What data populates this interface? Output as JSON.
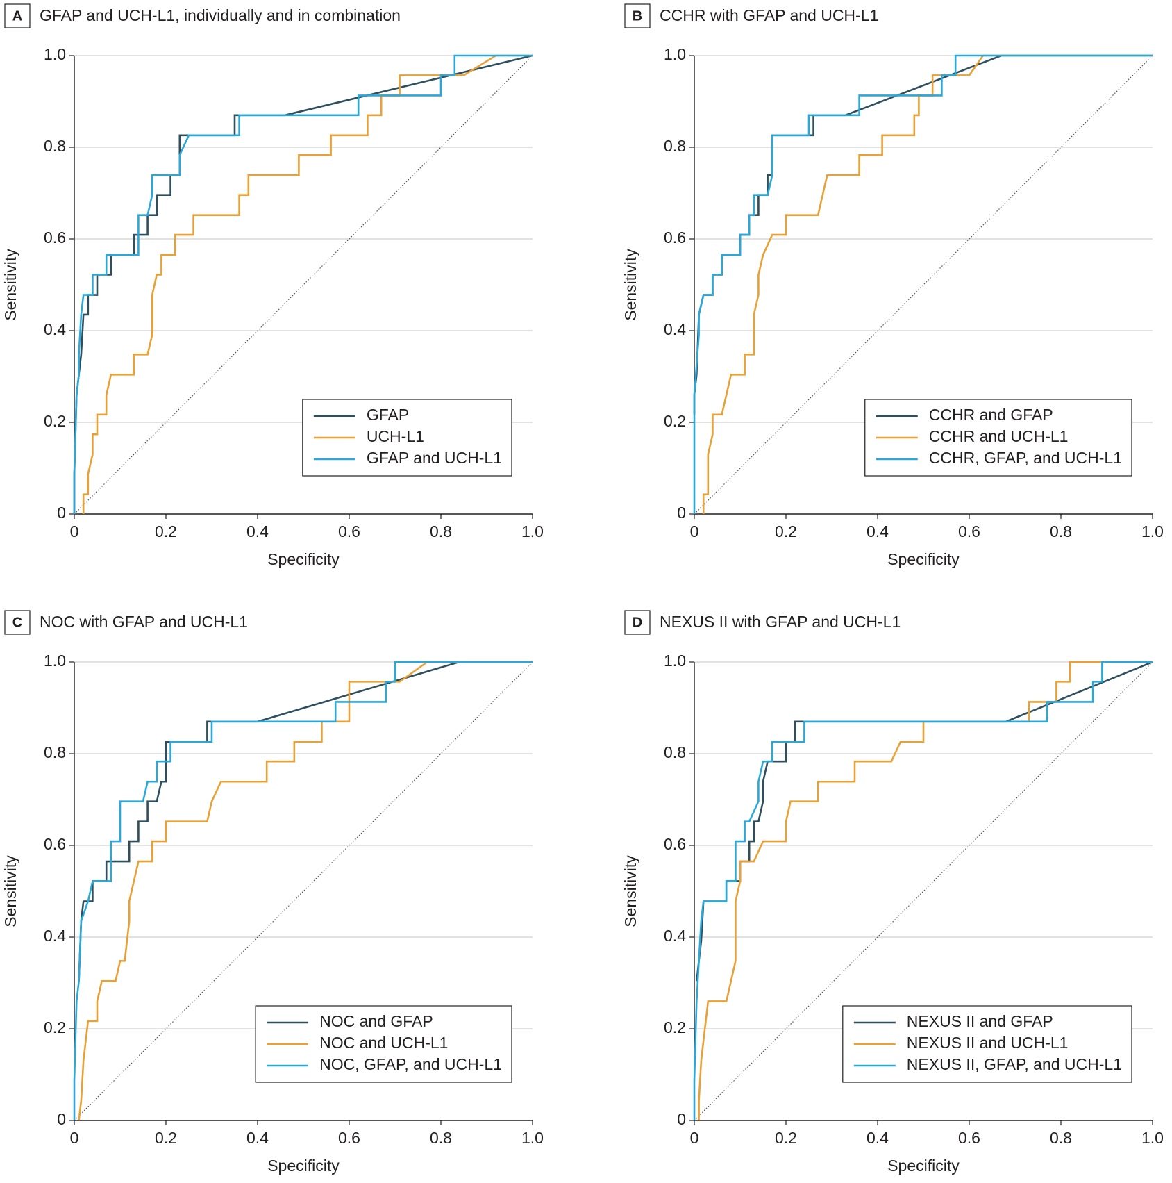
{
  "chart_data": [
    {
      "type": "line",
      "panel": "A",
      "title": "GFAP and UCH-L1, individually and in combination",
      "xlabel": "Specificity",
      "ylabel": "Sensitivity",
      "xlim": [
        0,
        1
      ],
      "ylim": [
        0,
        1
      ],
      "xticks": [
        0,
        0.2,
        0.4,
        0.6,
        0.8,
        {
          "value": 1,
          "label": "1.0"
        }
      ],
      "yticks": [
        0,
        0.2,
        0.4,
        0.6,
        0.8,
        {
          "value": 1,
          "label": "1.0"
        }
      ],
      "grid": true,
      "legend": "lower right",
      "series": [
        {
          "name": "GFAP",
          "color": "#2e4f5e",
          "x": [
            0,
            0,
            0.005,
            0.01,
            0.015,
            0.02,
            0.03,
            0.03,
            0.05,
            0.05,
            0.08,
            0.08,
            0.13,
            0.13,
            0.16,
            0.16,
            0.18,
            0.18,
            0.21,
            0.21,
            0.23,
            0.23,
            0.35,
            0.35,
            0.46,
            1
          ],
          "values": [
            0,
            0.087,
            0.26,
            0.304,
            0.348,
            0.435,
            0.435,
            0.478,
            0.478,
            0.522,
            0.522,
            0.565,
            0.565,
            0.609,
            0.609,
            0.652,
            0.652,
            0.696,
            0.696,
            0.739,
            0.739,
            0.826,
            0.826,
            0.87,
            0.87,
            1
          ]
        },
        {
          "name": "UCH-L1",
          "color": "#e9a035",
          "x": [
            0.02,
            0.02,
            0.03,
            0.03,
            0.04,
            0.04,
            0.05,
            0.05,
            0.07,
            0.07,
            0.08,
            0.13,
            0.13,
            0.16,
            0.17,
            0.17,
            0.18,
            0.19,
            0.19,
            0.22,
            0.22,
            0.26,
            0.26,
            0.36,
            0.36,
            0.38,
            0.38,
            0.49,
            0.49,
            0.56,
            0.56,
            0.64,
            0.64,
            0.67,
            0.67,
            0.71,
            0.71,
            0.85,
            0.92,
            1
          ],
          "values": [
            0,
            0.043,
            0.043,
            0.087,
            0.13,
            0.174,
            0.174,
            0.217,
            0.217,
            0.26,
            0.304,
            0.304,
            0.348,
            0.348,
            0.391,
            0.478,
            0.522,
            0.522,
            0.565,
            0.565,
            0.609,
            0.609,
            0.652,
            0.652,
            0.696,
            0.696,
            0.739,
            0.739,
            0.783,
            0.783,
            0.826,
            0.826,
            0.87,
            0.87,
            0.913,
            0.913,
            0.957,
            0.957,
            1,
            1
          ]
        },
        {
          "name": "GFAP and UCH-L1",
          "color": "#2aa8d9",
          "x": [
            0,
            0,
            0.005,
            0.01,
            0.01,
            0.015,
            0.02,
            0.04,
            0.04,
            0.07,
            0.07,
            0.14,
            0.14,
            0.16,
            0.17,
            0.17,
            0.23,
            0.23,
            0.25,
            0.36,
            0.36,
            0.62,
            0.62,
            0.8,
            0.8,
            0.83,
            0.83,
            1
          ],
          "values": [
            0,
            0.087,
            0.26,
            0.304,
            0.348,
            0.435,
            0.478,
            0.478,
            0.522,
            0.522,
            0.565,
            0.565,
            0.652,
            0.652,
            0.696,
            0.739,
            0.739,
            0.783,
            0.826,
            0.826,
            0.87,
            0.87,
            0.913,
            0.913,
            0.957,
            0.957,
            1,
            1
          ]
        }
      ]
    },
    {
      "type": "line",
      "panel": "B",
      "title": "CCHR with GFAP and UCH-L1",
      "xlabel": "Specificity",
      "ylabel": "Sensitivity",
      "xlim": [
        0,
        1
      ],
      "ylim": [
        0,
        1
      ],
      "xticks": [
        0,
        0.2,
        0.4,
        0.6,
        0.8,
        {
          "value": 1,
          "label": "1.0"
        }
      ],
      "yticks": [
        0,
        0.2,
        0.4,
        0.6,
        0.8,
        {
          "value": 1,
          "label": "1.0"
        }
      ],
      "grid": true,
      "legend": "lower right",
      "series": [
        {
          "name": "CCHR and GFAP",
          "color": "#2e4f5e",
          "x": [
            0,
            0,
            0.005,
            0.01,
            0.02,
            0.04,
            0.04,
            0.06,
            0.06,
            0.1,
            0.1,
            0.12,
            0.12,
            0.14,
            0.14,
            0.16,
            0.16,
            0.17,
            0.17,
            0.26,
            0.26,
            0.33,
            0.67,
            1
          ],
          "values": [
            0.217,
            0.26,
            0.304,
            0.435,
            0.478,
            0.478,
            0.522,
            0.522,
            0.565,
            0.565,
            0.609,
            0.609,
            0.652,
            0.652,
            0.696,
            0.696,
            0.739,
            0.739,
            0.826,
            0.826,
            0.87,
            0.87,
            1,
            1
          ]
        },
        {
          "name": "CCHR and UCH-L1",
          "color": "#e9a035",
          "x": [
            0.02,
            0.02,
            0.03,
            0.03,
            0.04,
            0.04,
            0.06,
            0.07,
            0.08,
            0.11,
            0.11,
            0.13,
            0.13,
            0.14,
            0.14,
            0.15,
            0.17,
            0.2,
            0.2,
            0.27,
            0.28,
            0.29,
            0.36,
            0.36,
            0.41,
            0.41,
            0.48,
            0.48,
            0.49,
            0.49,
            0.52,
            0.52,
            0.6,
            0.63,
            1
          ],
          "values": [
            0,
            0.043,
            0.043,
            0.13,
            0.174,
            0.217,
            0.217,
            0.26,
            0.304,
            0.304,
            0.348,
            0.348,
            0.435,
            0.478,
            0.522,
            0.565,
            0.609,
            0.609,
            0.652,
            0.652,
            0.696,
            0.739,
            0.739,
            0.783,
            0.783,
            0.826,
            0.826,
            0.87,
            0.87,
            0.913,
            0.913,
            0.957,
            0.957,
            1,
            1
          ]
        },
        {
          "name": "CCHR, GFAP, and UCH-L1",
          "color": "#2aa8d9",
          "x": [
            0,
            0,
            0.01,
            0.01,
            0.02,
            0.04,
            0.04,
            0.06,
            0.06,
            0.1,
            0.1,
            0.12,
            0.12,
            0.13,
            0.13,
            0.16,
            0.17,
            0.17,
            0.25,
            0.25,
            0.36,
            0.36,
            0.54,
            0.54,
            0.57,
            0.57,
            1
          ],
          "values": [
            0,
            0.26,
            0.391,
            0.435,
            0.478,
            0.478,
            0.522,
            0.522,
            0.565,
            0.565,
            0.609,
            0.609,
            0.652,
            0.652,
            0.696,
            0.696,
            0.739,
            0.826,
            0.826,
            0.87,
            0.87,
            0.913,
            0.913,
            0.957,
            0.957,
            1,
            1
          ]
        }
      ]
    },
    {
      "type": "line",
      "panel": "C",
      "title": "NOC with GFAP and UCH-L1",
      "xlabel": "Specificity",
      "ylabel": "Sensitivity",
      "xlim": [
        0,
        1
      ],
      "ylim": [
        0,
        1
      ],
      "xticks": [
        0,
        0.2,
        0.4,
        0.6,
        0.8,
        {
          "value": 1,
          "label": "1.0"
        }
      ],
      "yticks": [
        0,
        0.2,
        0.4,
        0.6,
        0.8,
        {
          "value": 1,
          "label": "1.0"
        }
      ],
      "grid": true,
      "legend": "lower right",
      "series": [
        {
          "name": "NOC and GFAP",
          "color": "#2e4f5e",
          "x": [
            0.01,
            0.015,
            0.02,
            0.04,
            0.04,
            0.07,
            0.07,
            0.12,
            0.12,
            0.14,
            0.14,
            0.16,
            0.16,
            0.18,
            0.19,
            0.2,
            0.2,
            0.29,
            0.29,
            0.4,
            0.84,
            1
          ],
          "values": [
            0.304,
            0.435,
            0.478,
            0.478,
            0.522,
            0.522,
            0.565,
            0.565,
            0.609,
            0.609,
            0.652,
            0.652,
            0.696,
            0.696,
            0.739,
            0.739,
            0.826,
            0.826,
            0.87,
            0.87,
            1,
            1
          ]
        },
        {
          "name": "NOC and UCH-L1",
          "color": "#e9a035",
          "x": [
            0.01,
            0.015,
            0.02,
            0.025,
            0.03,
            0.05,
            0.05,
            0.06,
            0.09,
            0.1,
            0.11,
            0.12,
            0.12,
            0.13,
            0.14,
            0.17,
            0.17,
            0.2,
            0.2,
            0.29,
            0.3,
            0.32,
            0.42,
            0.42,
            0.48,
            0.48,
            0.54,
            0.54,
            0.6,
            0.6,
            0.71,
            0.77,
            1
          ],
          "values": [
            0,
            0.043,
            0.13,
            0.174,
            0.217,
            0.217,
            0.26,
            0.304,
            0.304,
            0.348,
            0.348,
            0.435,
            0.478,
            0.522,
            0.565,
            0.565,
            0.609,
            0.609,
            0.652,
            0.652,
            0.696,
            0.739,
            0.739,
            0.783,
            0.783,
            0.826,
            0.826,
            0.87,
            0.87,
            0.957,
            0.957,
            1,
            1
          ]
        },
        {
          "name": "NOC, GFAP, and UCH-L1",
          "color": "#2aa8d9",
          "x": [
            0,
            0,
            0.005,
            0.01,
            0.015,
            0.03,
            0.04,
            0.08,
            0.08,
            0.1,
            0.1,
            0.15,
            0.16,
            0.18,
            0.18,
            0.21,
            0.21,
            0.3,
            0.3,
            0.57,
            0.57,
            0.68,
            0.68,
            0.7,
            0.7,
            1
          ],
          "values": [
            0,
            0.087,
            0.26,
            0.304,
            0.435,
            0.478,
            0.522,
            0.522,
            0.609,
            0.609,
            0.696,
            0.696,
            0.739,
            0.739,
            0.783,
            0.783,
            0.826,
            0.826,
            0.87,
            0.87,
            0.913,
            0.913,
            0.957,
            0.957,
            1,
            1
          ]
        }
      ]
    },
    {
      "type": "line",
      "panel": "D",
      "title": "NEXUS II with GFAP and UCH-L1",
      "xlabel": "Specificity",
      "ylabel": "Sensitivity",
      "xlim": [
        0,
        1
      ],
      "ylim": [
        0,
        1
      ],
      "xticks": [
        0,
        0.2,
        0.4,
        0.6,
        0.8,
        {
          "value": 1,
          "label": "1.0"
        }
      ],
      "yticks": [
        0,
        0.2,
        0.4,
        0.6,
        0.8,
        {
          "value": 1,
          "label": "1.0"
        }
      ],
      "grid": true,
      "legend": "lower right",
      "series": [
        {
          "name": "NEXUS II and GFAP",
          "color": "#2e4f5e",
          "x": [
            0.005,
            0.01,
            0.015,
            0.02,
            0.07,
            0.07,
            0.1,
            0.1,
            0.12,
            0.12,
            0.13,
            0.13,
            0.14,
            0.15,
            0.15,
            0.16,
            0.2,
            0.2,
            0.22,
            0.22,
            0.68,
            1
          ],
          "values": [
            0.304,
            0.348,
            0.391,
            0.478,
            0.478,
            0.522,
            0.522,
            0.565,
            0.565,
            0.609,
            0.609,
            0.652,
            0.652,
            0.696,
            0.739,
            0.783,
            0.783,
            0.826,
            0.826,
            0.87,
            0.87,
            1
          ]
        },
        {
          "name": "NEXUS II and UCH-L1",
          "color": "#e9a035",
          "x": [
            0.01,
            0.01,
            0.015,
            0.02,
            0.03,
            0.07,
            0.08,
            0.09,
            0.09,
            0.1,
            0.1,
            0.13,
            0.15,
            0.2,
            0.2,
            0.21,
            0.27,
            0.27,
            0.35,
            0.35,
            0.43,
            0.45,
            0.5,
            0.5,
            0.73,
            0.73,
            0.79,
            0.79,
            0.82,
            0.82,
            0.89,
            1
          ],
          "values": [
            0,
            0.043,
            0.13,
            0.174,
            0.26,
            0.26,
            0.304,
            0.348,
            0.478,
            0.522,
            0.565,
            0.565,
            0.609,
            0.609,
            0.652,
            0.696,
            0.696,
            0.739,
            0.739,
            0.783,
            0.783,
            0.826,
            0.826,
            0.87,
            0.87,
            0.913,
            0.913,
            0.957,
            0.957,
            1,
            1,
            1
          ]
        },
        {
          "name": "NEXUS II, GFAP, and UCH-L1",
          "color": "#2aa8d9",
          "x": [
            0,
            0,
            0.005,
            0.01,
            0.015,
            0.02,
            0.07,
            0.07,
            0.09,
            0.09,
            0.11,
            0.11,
            0.12,
            0.14,
            0.14,
            0.15,
            0.17,
            0.17,
            0.24,
            0.24,
            0.77,
            0.77,
            0.87,
            0.87,
            0.89,
            0.89,
            1
          ],
          "values": [
            0,
            0.087,
            0.26,
            0.348,
            0.435,
            0.478,
            0.478,
            0.522,
            0.522,
            0.609,
            0.609,
            0.652,
            0.652,
            0.696,
            0.739,
            0.783,
            0.783,
            0.826,
            0.826,
            0.87,
            0.87,
            0.913,
            0.913,
            0.957,
            0.957,
            1,
            1
          ]
        }
      ]
    }
  ]
}
